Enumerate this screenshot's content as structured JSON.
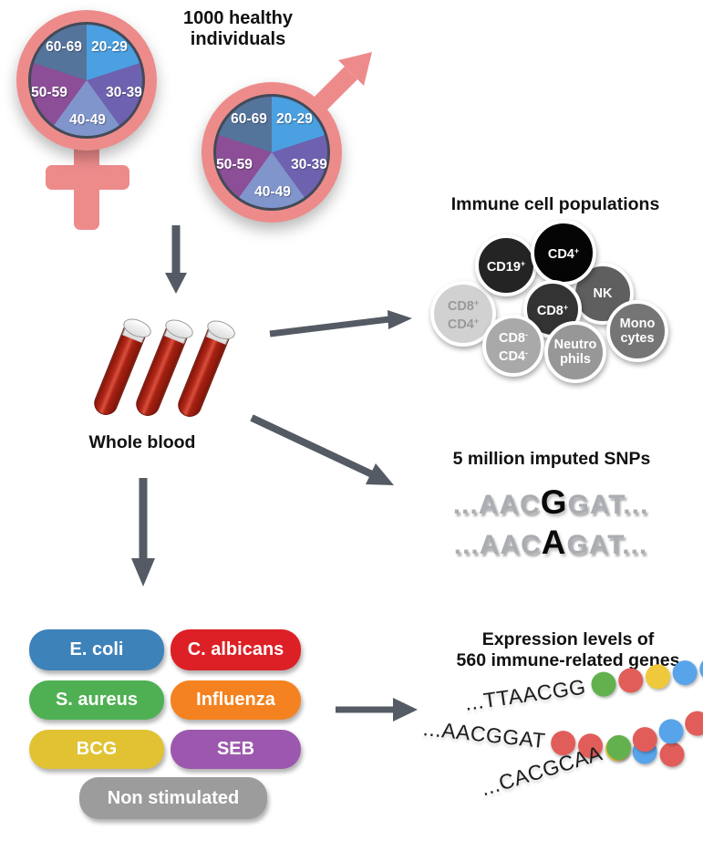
{
  "palette": {
    "arrow": "#555b64",
    "symbol_pink": "#ed8b8b",
    "pie_border": "#434a57",
    "tube_red": "#b02718"
  },
  "header": {
    "line1": "1000 healthy",
    "line2": "individuals"
  },
  "age_groups": [
    {
      "label": "20-29",
      "color": "#4aa0e0"
    },
    {
      "label": "30-39",
      "color": "#6e62b0"
    },
    {
      "label": "40-49",
      "color": "#8095cb"
    },
    {
      "label": "50-59",
      "color": "#8c4e96"
    },
    {
      "label": "60-69",
      "color": "#54749c"
    }
  ],
  "whole_blood": {
    "label": "Whole blood"
  },
  "immune_cells": {
    "title": "Immune cell populations",
    "cells": [
      {
        "id": "cd8pos-cd4pos",
        "lines": [
          {
            "text": "CD8",
            "sup": "+"
          },
          {
            "text": "CD4",
            "sup": "+"
          }
        ],
        "bg": "#d1d1d1",
        "fg": "#999999"
      },
      {
        "id": "cd19",
        "lines": [
          {
            "text": "CD19",
            "sup": "+"
          }
        ],
        "bg": "#242424",
        "fg": "#ffffff"
      },
      {
        "id": "nk",
        "lines": [
          {
            "text": "NK",
            "sup": ""
          }
        ],
        "bg": "#5f5f5f",
        "fg": "#ffffff"
      },
      {
        "id": "cd4",
        "lines": [
          {
            "text": "CD4",
            "sup": "+"
          }
        ],
        "bg": "#050505",
        "fg": "#ffffff"
      },
      {
        "id": "cd8",
        "lines": [
          {
            "text": "CD8",
            "sup": "+"
          }
        ],
        "bg": "#333333",
        "fg": "#ffffff"
      },
      {
        "id": "monocytes",
        "lines": [
          {
            "text": "Mono",
            "sup": ""
          },
          {
            "text": "cytes",
            "sup": ""
          }
        ],
        "bg": "#757575",
        "fg": "#ffffff"
      },
      {
        "id": "cd8neg-cd4neg",
        "lines": [
          {
            "text": "CD8",
            "sup": "-"
          },
          {
            "text": "CD4",
            "sup": "-"
          }
        ],
        "bg": "#a9a9a9",
        "fg": "#ffffff"
      },
      {
        "id": "neutrophils",
        "lines": [
          {
            "text": "Neutro",
            "sup": ""
          },
          {
            "text": "phils",
            "sup": ""
          }
        ],
        "bg": "#979797",
        "fg": "#ffffff"
      }
    ]
  },
  "snps": {
    "title": "5 million imputed SNPs",
    "sequences": [
      {
        "pre": "...AAC",
        "snp": "G",
        "post": "GAT..."
      },
      {
        "pre": "...AAC",
        "snp": "A",
        "post": "GAT..."
      }
    ]
  },
  "stimuli": [
    {
      "label": "E. coli",
      "color": "#3e82ba"
    },
    {
      "label": "C. albicans",
      "color": "#dd2026"
    },
    {
      "label": "S. aureus",
      "color": "#4fb053"
    },
    {
      "label": "Influenza",
      "color": "#f58220"
    },
    {
      "label": "BCG",
      "color": "#e0c233"
    },
    {
      "label": "SEB",
      "color": "#9c58ae"
    },
    {
      "label": "Non stimulated",
      "color": "#9c9c9c"
    }
  ],
  "expression": {
    "title_line1": "Expression levels of",
    "title_line2": "560 immune-related genes",
    "dot_colors": {
      "green": "#62b14e",
      "red": "#e15d5a",
      "yellow": "#efc83c",
      "blue": "#58a4ea"
    },
    "strands": [
      {
        "sequence": "...TTAACGG",
        "dots": [
          "green",
          "red",
          "yellow",
          "blue",
          "blue"
        ]
      },
      {
        "sequence": "...AACGGAT",
        "dots": [
          "red",
          "red",
          "yellow",
          "blue",
          "red"
        ]
      },
      {
        "sequence": "...CACGCAA",
        "dots": [
          "green",
          "red",
          "blue",
          "red",
          "red"
        ]
      }
    ]
  }
}
